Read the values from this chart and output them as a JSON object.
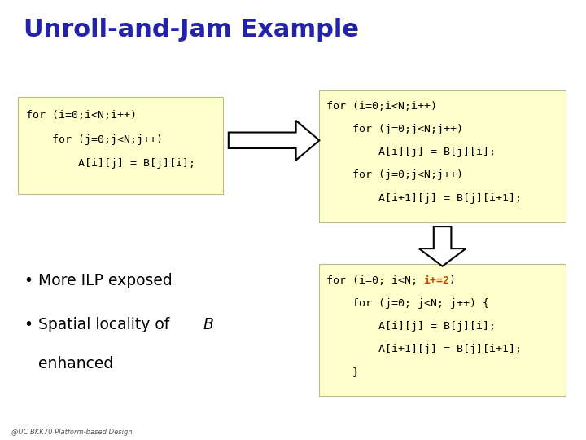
{
  "title": "Unroll-and-Jam Example",
  "title_color": "#2222AA",
  "title_fontsize": 22,
  "bg_color": "#FFFFFF",
  "box_color": "#FFFFCC",
  "box_edge_color": "#BBBB88",
  "code_color": "#000000",
  "highlight_color": "#CC4400",
  "footnote": "@UC BKK70 Platform-based Design",
  "code_fontsize": 9.5,
  "bullet_fontsize": 13.5,
  "box1_lines": [
    "for (i=0;i<N;i++)",
    "    for (j=0;j<N;j++)",
    "        A[i][j] = B[j][i];"
  ],
  "box2_lines": [
    "for (i=0;i<N;i++)",
    "    for (j=0;j<N;j++)",
    "        A[i][j] = B[j][i];",
    "    for (j=0;j<N;j++)",
    "        A[i+1][j] = B[j][i+1];"
  ],
  "box3_line1_pre": "for (i=0; i<N; ",
  "box3_line1_hi": "i+=2",
  "box3_line1_post": ")",
  "box3_rest": [
    "    for (j=0; j<N; j++) {",
    "        A[i][j] = B[j][i];",
    "        A[i+1][j] = B[j][i+1];",
    "    }"
  ],
  "bullet1": "More ILP exposed",
  "bullet2a": "Spatial locality of ",
  "bullet2b": "B",
  "bullet2c": "",
  "bullet3": "enhanced"
}
